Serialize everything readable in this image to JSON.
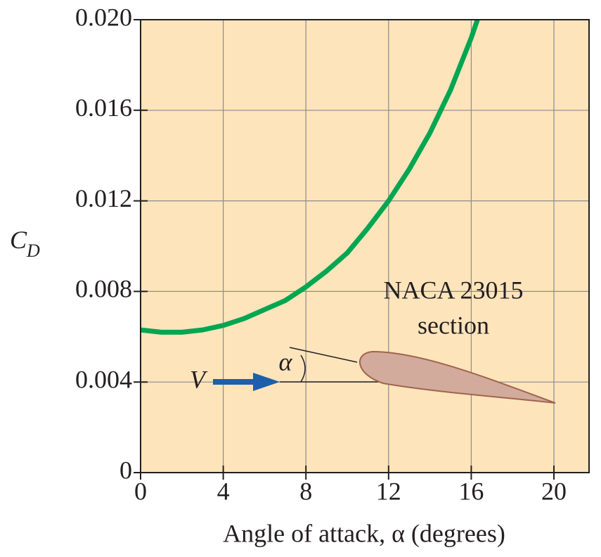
{
  "chart_data": {
    "type": "line",
    "xlabel": "Angle of attack, α (degrees)",
    "ylabel": {
      "main": "C",
      "subscript": "D"
    },
    "x": [
      0,
      1,
      2,
      3,
      4,
      5,
      6,
      7,
      8,
      9,
      10,
      11,
      12,
      13,
      14,
      15,
      16,
      16.3
    ],
    "series": [
      {
        "color": "#00a651",
        "values": [
          0.0063,
          0.0062,
          0.0062,
          0.0063,
          0.0065,
          0.0068,
          0.0072,
          0.0076,
          0.0082,
          0.0089,
          0.0097,
          0.0108,
          0.012,
          0.0134,
          0.015,
          0.0169,
          0.0192,
          0.02
        ]
      }
    ],
    "xlim": [
      0,
      21.7
    ],
    "ylim": [
      0,
      0.02
    ],
    "xticks": [
      0,
      4,
      8,
      12,
      16,
      20
    ],
    "yticks": [
      0,
      0.004,
      0.008,
      0.012,
      0.016,
      {
        "value": 0.02,
        "label": "0.020"
      }
    ],
    "grid": true,
    "annotations": {
      "airfoil_name": "NACA 23015",
      "airfoil_sub": "section",
      "velocity": "V",
      "angle": "α"
    }
  }
}
